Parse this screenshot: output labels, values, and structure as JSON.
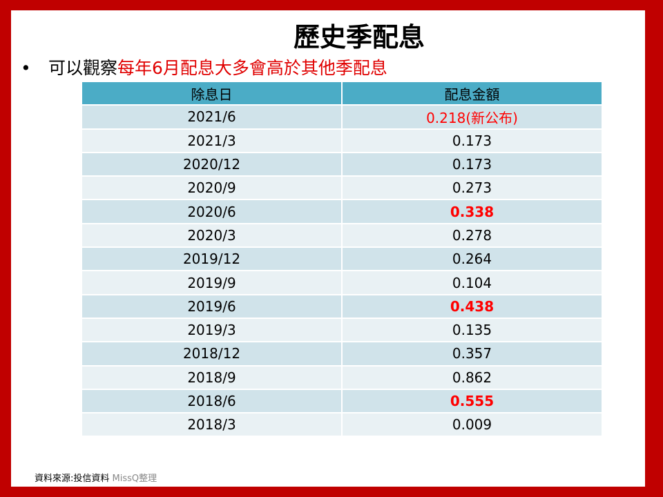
{
  "title": "歷史季配息",
  "bullet": {
    "prefix": "可以觀察",
    "highlight": "每年6月配息大多會高於其他季配息"
  },
  "table": {
    "headers": [
      "除息日",
      "配息金額"
    ],
    "rows": [
      {
        "date": "2021/6",
        "amount": "0.218(新公布)",
        "style": "red"
      },
      {
        "date": "2021/3",
        "amount": "0.173",
        "style": "normal"
      },
      {
        "date": "2020/12",
        "amount": "0.173",
        "style": "normal"
      },
      {
        "date": "2020/9",
        "amount": "0.273",
        "style": "normal"
      },
      {
        "date": "2020/6",
        "amount": "0.338",
        "style": "red-bold"
      },
      {
        "date": "2020/3",
        "amount": "0.278",
        "style": "normal"
      },
      {
        "date": "2019/12",
        "amount": "0.264",
        "style": "normal"
      },
      {
        "date": "2019/9",
        "amount": "0.104",
        "style": "normal"
      },
      {
        "date": "2019/6",
        "amount": "0.438",
        "style": "red-bold"
      },
      {
        "date": "2019/3",
        "amount": "0.135",
        "style": "normal"
      },
      {
        "date": "2018/12",
        "amount": "0.357",
        "style": "normal"
      },
      {
        "date": "2018/9",
        "amount": "0.862",
        "style": "normal"
      },
      {
        "date": "2018/6",
        "amount": "0.555",
        "style": "red-bold"
      },
      {
        "date": "2018/3",
        "amount": "0.009",
        "style": "normal"
      }
    ]
  },
  "source": {
    "label": "資料來源:投信資料",
    "author": "MissQ整理"
  },
  "colors": {
    "frame": "#c00000",
    "header": "#4bacc6",
    "row_odd": "#d0e3ea",
    "row_even": "#e9f1f4",
    "highlight": "#ff0000"
  }
}
